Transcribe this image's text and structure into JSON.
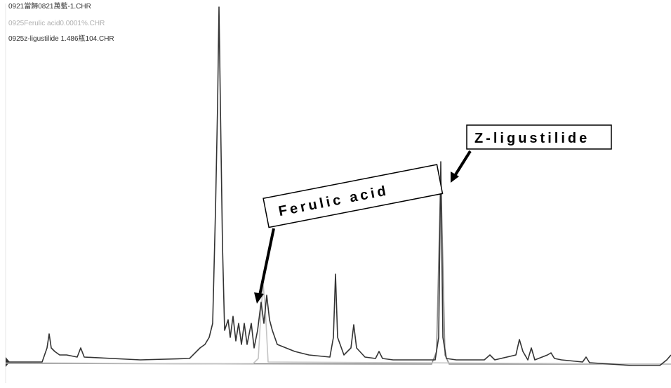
{
  "chart_data": {
    "type": "line",
    "xlim": [
      0,
      948
    ],
    "ylim": [
      -5,
      513
    ],
    "annotations": [
      "Ferulic acid",
      "Z-ligustilide"
    ],
    "series": [
      {
        "name": "0921當歸0821萬藍-1.CHR",
        "color": "#333333",
        "x": [
          0,
          52,
          59,
          62,
          65,
          70,
          77,
          87,
          102,
          107,
          112,
          192,
          262,
          277,
          284,
          290,
          295,
          299,
          302,
          304,
          306,
          309,
          312,
          317,
          320,
          324,
          328,
          332,
          336,
          340,
          344,
          350,
          354,
          359,
          364,
          368,
          372,
          376,
          380,
          387,
          412,
          432,
          462,
          467,
          470,
          473,
          482,
          492,
          496,
          500,
          512,
          527,
          532,
          537,
          552,
          612,
          617,
          620,
          623,
          628,
          642,
          682,
          690,
          697,
          727,
          732,
          737,
          744,
          749,
          754,
          772,
          777,
          782,
          792,
          822,
          827,
          832,
          892,
          932,
          942,
          948
        ],
        "values": [
          3,
          3,
          23,
          43,
          23,
          18,
          13,
          13,
          10,
          23,
          10,
          6,
          8,
          23,
          28,
          38,
          58,
          218,
          368,
          508,
          368,
          168,
          48,
          63,
          38,
          68,
          33,
          58,
          28,
          58,
          28,
          58,
          23,
          48,
          88,
          58,
          98,
          63,
          48,
          28,
          18,
          13,
          10,
          38,
          128,
          38,
          13,
          23,
          56,
          23,
          10,
          8,
          18,
          8,
          6,
          6,
          38,
          288,
          38,
          8,
          6,
          6,
          13,
          6,
          13,
          35,
          18,
          6,
          23,
          6,
          13,
          16,
          8,
          6,
          3,
          10,
          2,
          -2,
          -2,
          6,
          13
        ]
      },
      {
        "name": "0925Ferulic acid0.0001%.CHR",
        "color": "#c4c4c4",
        "x": [
          0,
          352,
          360,
          364,
          367,
          370,
          374,
          948
        ],
        "values": [
          2,
          0,
          8,
          78,
          113,
          78,
          3,
          0
        ]
      },
      {
        "name": "0925z-ligustilide 1.486瓶104.CHR",
        "color": "#8a8a8a",
        "x": [
          0,
          607,
          614,
          618,
          620,
          622,
          626,
          632,
          948
        ],
        "values": [
          1,
          0,
          18,
          188,
          268,
          188,
          13,
          0,
          0
        ]
      }
    ]
  }
}
